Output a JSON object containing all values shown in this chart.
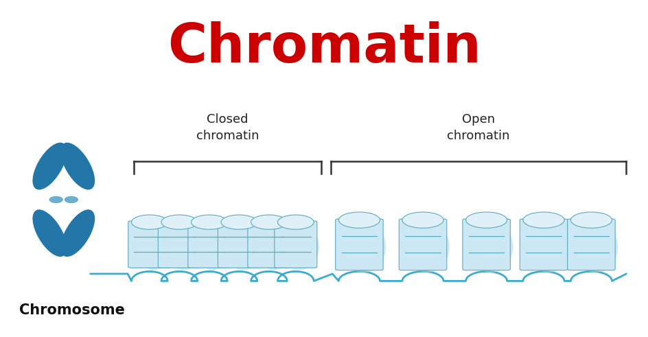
{
  "title": "Chromatin",
  "title_color": "#cc0000",
  "title_fontsize": 56,
  "title_fontweight": "bold",
  "bg_color": "#ffffff",
  "panel_bg_color": "#e8f3f8",
  "chromosome_label": "Chromosome",
  "chromosome_label_fontsize": 15,
  "chromosome_label_fontweight": "bold",
  "closed_label": "Closed\nchromatin",
  "open_label": "Open\nchromatin",
  "label_fontsize": 13,
  "dna_color": "#3aaccf",
  "chromosome_color": "#2277a8",
  "centromere_color": "#6ab0cc",
  "nucleosome_face_color": "#cce8f4",
  "nucleosome_top_color": "#dff0f8",
  "nucleosome_edge_color": "#5baac0",
  "nucleosome_shadow_color": "#a8d0e0",
  "bracket_color": "#333333",
  "label_color": "#222222"
}
